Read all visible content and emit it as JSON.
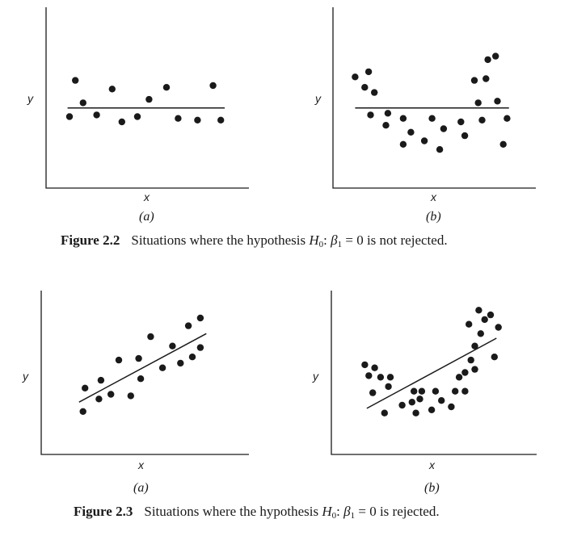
{
  "figure_2_2": {
    "label": "Figure 2.2",
    "text_before": "Situations where the hypothesis",
    "h_symbol": "H",
    "h_sub": "0",
    "colon": ":",
    "beta_symbol": "β",
    "beta_sub": "1",
    "text_after": "= 0 is not rejected."
  },
  "figure_2_3": {
    "label": "Figure 2.3",
    "text_before": "Situations where the hypothesis",
    "h_symbol": "H",
    "h_sub": "0",
    "colon": ":",
    "beta_symbol": "β",
    "beta_sub": "1",
    "text_after": "= 0 is rejected."
  },
  "chart_data": [
    {
      "id": "fig22a",
      "type": "scatter",
      "subplot_label": "(a)",
      "xlabel": "x",
      "ylabel": "y",
      "xlim": [
        0,
        10
      ],
      "ylim": [
        0,
        10
      ],
      "points": [
        [
          1.0,
          3.9
        ],
        [
          1.3,
          6.0
        ],
        [
          1.7,
          4.7
        ],
        [
          2.4,
          4.0
        ],
        [
          3.2,
          5.5
        ],
        [
          3.7,
          3.6
        ],
        [
          4.5,
          3.9
        ],
        [
          5.1,
          4.9
        ],
        [
          6.0,
          5.6
        ],
        [
          6.6,
          3.8
        ],
        [
          7.6,
          3.7
        ],
        [
          8.4,
          5.7
        ],
        [
          8.8,
          3.7
        ]
      ],
      "fit_line": {
        "x": [
          0.9,
          9.0
        ],
        "y": [
          4.4,
          4.4
        ]
      }
    },
    {
      "id": "fig22b",
      "type": "scatter",
      "subplot_label": "(b)",
      "xlabel": "x",
      "ylabel": "y",
      "xlim": [
        0,
        10
      ],
      "ylim": [
        0,
        10
      ],
      "points": [
        [
          0.9,
          6.2
        ],
        [
          1.4,
          5.6
        ],
        [
          1.6,
          6.5
        ],
        [
          1.9,
          5.3
        ],
        [
          1.7,
          4.0
        ],
        [
          2.5,
          3.4
        ],
        [
          2.6,
          4.1
        ],
        [
          3.4,
          3.8
        ],
        [
          3.4,
          2.3
        ],
        [
          3.8,
          3.0
        ],
        [
          4.5,
          2.5
        ],
        [
          4.9,
          3.8
        ],
        [
          5.3,
          2.0
        ],
        [
          5.5,
          3.2
        ],
        [
          6.4,
          3.6
        ],
        [
          6.6,
          2.8
        ],
        [
          7.1,
          6.0
        ],
        [
          7.3,
          4.7
        ],
        [
          7.5,
          3.7
        ],
        [
          7.7,
          6.1
        ],
        [
          7.8,
          7.2
        ],
        [
          8.2,
          7.4
        ],
        [
          8.3,
          4.8
        ],
        [
          8.6,
          2.3
        ],
        [
          8.8,
          3.8
        ]
      ],
      "fit_line": {
        "x": [
          0.9,
          8.9
        ],
        "y": [
          4.4,
          4.4
        ]
      }
    },
    {
      "id": "fig23a",
      "type": "scatter",
      "subplot_label": "(a)",
      "xlabel": "x",
      "ylabel": "y",
      "xlim": [
        0,
        10
      ],
      "ylim": [
        0,
        10
      ],
      "points": [
        [
          1.9,
          2.5
        ],
        [
          2.0,
          4.0
        ],
        [
          2.7,
          3.3
        ],
        [
          2.8,
          4.5
        ],
        [
          3.3,
          3.6
        ],
        [
          3.7,
          5.8
        ],
        [
          4.3,
          3.5
        ],
        [
          4.7,
          5.9
        ],
        [
          4.8,
          4.6
        ],
        [
          5.3,
          7.3
        ],
        [
          5.9,
          5.3
        ],
        [
          6.4,
          6.7
        ],
        [
          6.8,
          5.6
        ],
        [
          7.2,
          8.0
        ],
        [
          7.4,
          6.0
        ],
        [
          7.8,
          8.5
        ],
        [
          7.8,
          6.6
        ]
      ],
      "fit_line": {
        "x": [
          1.7,
          8.1
        ],
        "y": [
          3.1,
          7.5
        ]
      }
    },
    {
      "id": "fig23b",
      "type": "scatter",
      "subplot_label": "(b)",
      "xlabel": "x",
      "ylabel": "y",
      "xlim": [
        0,
        10
      ],
      "ylim": [
        0,
        10
      ],
      "points": [
        [
          1.5,
          5.5
        ],
        [
          1.7,
          4.8
        ],
        [
          1.9,
          3.7
        ],
        [
          2.0,
          5.3
        ],
        [
          2.3,
          4.7
        ],
        [
          2.5,
          2.4
        ],
        [
          2.7,
          4.1
        ],
        [
          2.8,
          4.7
        ],
        [
          3.4,
          2.9
        ],
        [
          3.9,
          3.1
        ],
        [
          4.0,
          3.8
        ],
        [
          4.1,
          2.4
        ],
        [
          4.3,
          3.3
        ],
        [
          4.4,
          3.8
        ],
        [
          4.9,
          2.6
        ],
        [
          5.1,
          3.8
        ],
        [
          5.4,
          3.2
        ],
        [
          5.9,
          2.8
        ],
        [
          6.1,
          3.8
        ],
        [
          6.3,
          4.7
        ],
        [
          6.6,
          3.8
        ],
        [
          6.6,
          5.0
        ],
        [
          6.8,
          8.1
        ],
        [
          6.9,
          5.8
        ],
        [
          7.1,
          6.7
        ],
        [
          7.1,
          5.2
        ],
        [
          7.3,
          9.0
        ],
        [
          7.4,
          7.5
        ],
        [
          7.6,
          8.4
        ],
        [
          7.9,
          8.7
        ],
        [
          8.1,
          6.0
        ],
        [
          8.3,
          7.9
        ]
      ],
      "fit_line": {
        "x": [
          1.6,
          8.2
        ],
        "y": [
          2.7,
          7.2
        ]
      }
    }
  ]
}
